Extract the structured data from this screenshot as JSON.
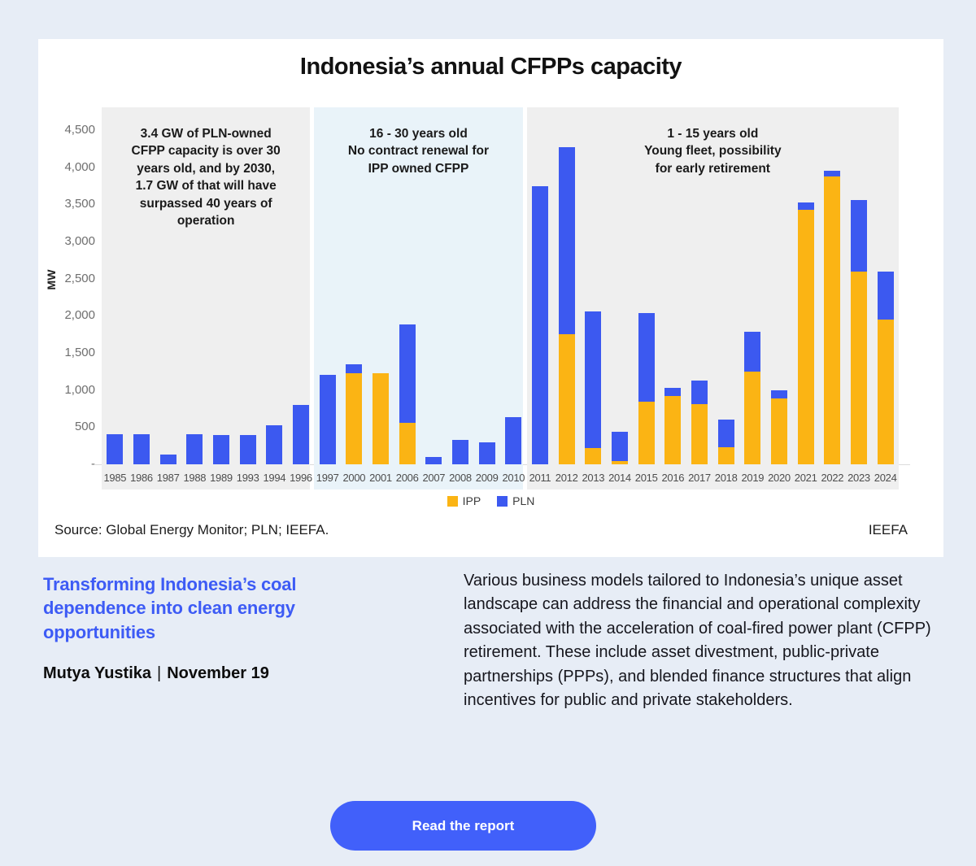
{
  "chart_data": {
    "type": "bar",
    "stacked": true,
    "title": "Indonesia’s annual CFPPs capacity",
    "xlabel": "",
    "ylabel": "MW",
    "ylim": [
      0,
      4500
    ],
    "grid": false,
    "legend_position": "bottom",
    "categories": [
      "1985",
      "1986",
      "1987",
      "1988",
      "1989",
      "1993",
      "1994",
      "1996",
      "1997",
      "2000",
      "2001",
      "2006",
      "2007",
      "2008",
      "2009",
      "2010",
      "2011",
      "2012",
      "2013",
      "2014",
      "2015",
      "2016",
      "2017",
      "2018",
      "2019",
      "2020",
      "2021",
      "2022",
      "2023",
      "2024"
    ],
    "series": [
      {
        "name": "IPP",
        "color": "#FBB414",
        "values": [
          0,
          0,
          0,
          0,
          0,
          0,
          0,
          0,
          0,
          1230,
          1230,
          560,
          0,
          0,
          0,
          0,
          0,
          1750,
          220,
          40,
          840,
          920,
          810,
          230,
          1250,
          890,
          3430,
          3880,
          2600,
          1950
        ]
      },
      {
        "name": "PLN",
        "color": "#3C59F0",
        "values": [
          400,
          400,
          130,
          400,
          390,
          390,
          530,
          800,
          1210,
          120,
          0,
          1320,
          100,
          330,
          300,
          630,
          3740,
          2520,
          1840,
          400,
          1200,
          110,
          320,
          370,
          540,
          110,
          100,
          70,
          960,
          640
        ]
      }
    ],
    "y_ticks": [
      {
        "label": "4,500",
        "value": 4500
      },
      {
        "label": "4,000",
        "value": 4000
      },
      {
        "label": "3,500",
        "value": 3500
      },
      {
        "label": "3,000",
        "value": 3000
      },
      {
        "label": "2,500",
        "value": 2500
      },
      {
        "label": "2,000",
        "value": 2000
      },
      {
        "label": "1,500",
        "value": 1500
      },
      {
        "label": "1,000",
        "value": 1000
      },
      {
        "label": "500",
        "value": 500
      },
      {
        "label": "-",
        "value": 0
      }
    ],
    "regions": [
      {
        "band": "1985-1996",
        "start_index": 0,
        "end_index": 7,
        "bg": "#EFEFEF",
        "lines": [
          "3.4 GW of PLN-owned",
          "CFPP capacity is over 30",
          "years old, and by 2030,",
          "1.7 GW of that will have",
          "surpassed 40 years of",
          "operation"
        ]
      },
      {
        "band": "1997-2010",
        "start_index": 8,
        "end_index": 15,
        "bg": "#E9F3F9",
        "lines": [
          "16 - 30 years old",
          "No contract renewal for",
          "IPP owned CFPP"
        ]
      },
      {
        "band": "2011-2024",
        "start_index": 16,
        "end_index": 29,
        "bg": "#EFEFEF",
        "lines": [
          "1 - 15 years old",
          "Young fleet, possibility",
          "for early retirement"
        ]
      }
    ]
  },
  "source": {
    "left": "Source: Global Energy Monitor; PLN; IEEFA.",
    "right": "IEEFA"
  },
  "article": {
    "title": "Transforming Indonesia’s coal dependence into clean energy opportunities",
    "byline_author": "Mutya Yustika",
    "byline_separator": "|",
    "byline_date": "November 19",
    "body": "Various business models tailored to Indonesia’s unique asset landscape can address the financial and operational complexity associated with the acceleration of coal-fired power plant (CFPP) retirement. These include asset divestment, public-private partnerships (PPPs), and blended finance structures that align incentives for public and private stakeholders."
  },
  "cta": {
    "label": "Read the report"
  }
}
